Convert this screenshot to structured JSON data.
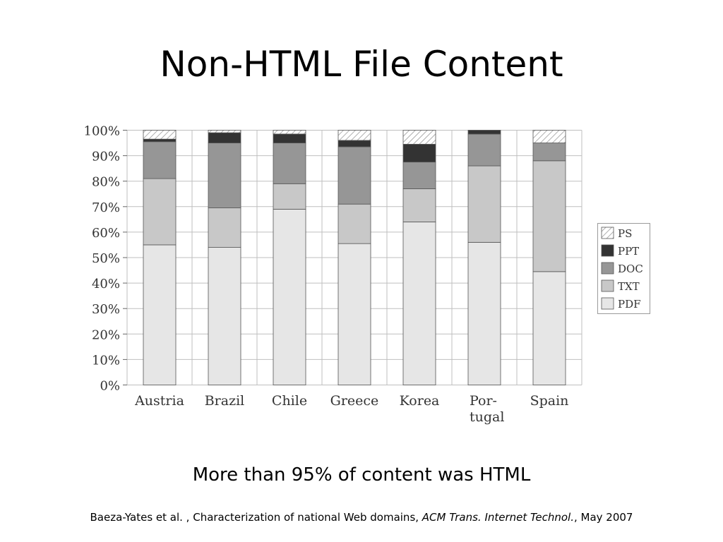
{
  "slide": {
    "title": "Non-HTML File Content",
    "caption": "More than 95% of content was HTML",
    "citation": {
      "prefix": "Baeza-Yates et al. , Characterization of national Web domains, ",
      "journal": "ACM Trans. Internet Technol.",
      "suffix": ", May 2007"
    }
  },
  "colors": {
    "PDF": "#e6e6e6",
    "TXT": "#c8c8c8",
    "DOC": "#969696",
    "PPT": "#333333",
    "PS_hatch": "#9a9a9a",
    "grid": "#bfbfbf",
    "bar_stroke": "#555555"
  },
  "chart_data": {
    "type": "bar",
    "stacked": true,
    "categories": [
      "Austria",
      "Brazil",
      "Chile",
      "Greece",
      "Korea",
      "Por-\ntugal",
      "Spain"
    ],
    "series": [
      {
        "name": "PDF",
        "values": [
          55,
          54,
          69,
          55.5,
          64,
          56,
          44.5
        ]
      },
      {
        "name": "TXT",
        "values": [
          26,
          15.5,
          10,
          15.5,
          13,
          30,
          43.5
        ]
      },
      {
        "name": "DOC",
        "values": [
          14.5,
          25.5,
          16,
          22.5,
          10.5,
          12.5,
          7
        ]
      },
      {
        "name": "PPT",
        "values": [
          1,
          4,
          3.5,
          2.5,
          7,
          1.5,
          0
        ]
      },
      {
        "name": "PS",
        "values": [
          3.5,
          1,
          1.5,
          4,
          5.5,
          0,
          5
        ]
      }
    ],
    "legend_order": [
      "PS",
      "PPT",
      "DOC",
      "TXT",
      "PDF"
    ],
    "legend_position": "right",
    "ylim": [
      0,
      100
    ],
    "yticks": [
      "0%",
      "10%",
      "20%",
      "30%",
      "40%",
      "50%",
      "60%",
      "70%",
      "80%",
      "90%",
      "100%"
    ],
    "grid": true
  }
}
